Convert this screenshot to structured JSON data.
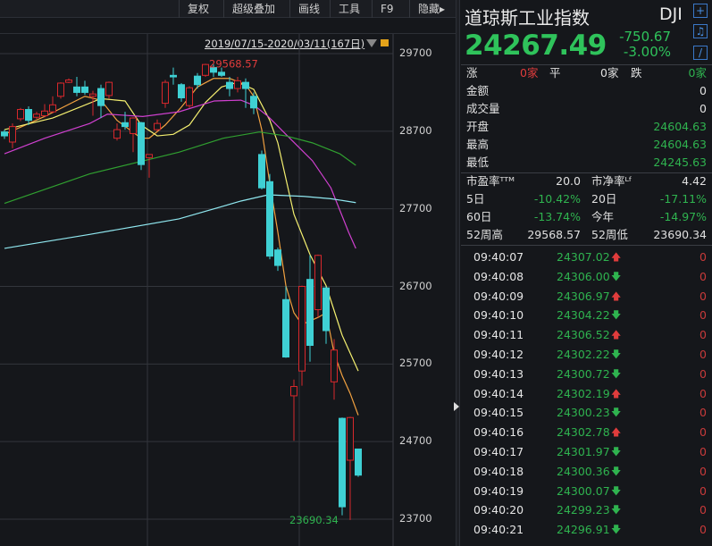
{
  "toolbar": {
    "items": [
      "复权",
      "超级叠加",
      "画线",
      "工具",
      "F9",
      "隐藏▸"
    ]
  },
  "range": "2019/07/15-2020/03/11(167日)",
  "yaxis": {
    "ticks": [
      29700,
      28700,
      27700,
      26700,
      25700,
      24700,
      23700
    ]
  },
  "colors": {
    "up": "#d8282c",
    "down": "#3fd0d4",
    "ma_orange": "#f0a040",
    "ma_yellow": "#f5f070",
    "ma_magenta": "#d040d0",
    "ma_green": "#30a030",
    "ma_cyan": "#90e8f0",
    "green_text": "#2fc35b",
    "red_text": "#e03c3c"
  },
  "chart_data": {
    "type": "candlestick",
    "ylim": [
      23700,
      29700
    ],
    "ohlc": [
      [
        28690,
        28720,
        28600,
        28640
      ],
      [
        28560,
        28800,
        28480,
        28760
      ],
      [
        28860,
        29000,
        28830,
        28980
      ],
      [
        28980,
        29020,
        28780,
        28840
      ],
      [
        28880,
        28950,
        28860,
        28920
      ],
      [
        28900,
        29050,
        28880,
        28960
      ],
      [
        28950,
        29150,
        28930,
        29040
      ],
      [
        29150,
        29330,
        29120,
        29320
      ],
      [
        29330,
        29380,
        29320,
        29360
      ],
      [
        29270,
        29400,
        29150,
        29200
      ],
      [
        29270,
        29350,
        29170,
        29200
      ],
      [
        29150,
        29220,
        28900,
        29180
      ],
      [
        29250,
        29300,
        28870,
        29030
      ],
      [
        29160,
        29340,
        29120,
        29330
      ],
      [
        28610,
        28800,
        28580,
        28720
      ],
      [
        28810,
        28950,
        28720,
        28760
      ],
      [
        28670,
        28880,
        28430,
        28870
      ],
      [
        28810,
        28820,
        28200,
        28270
      ],
      [
        28360,
        28400,
        28100,
        28400
      ],
      [
        28720,
        28850,
        28700,
        28800
      ],
      [
        29060,
        29360,
        29000,
        29330
      ],
      [
        29420,
        29520,
        29300,
        29400
      ],
      [
        29300,
        29320,
        29080,
        29130
      ],
      [
        29030,
        29280,
        29000,
        29260
      ],
      [
        29410,
        29450,
        29250,
        29300
      ],
      [
        29420,
        29568.57,
        29400,
        29560
      ],
      [
        29520,
        29560,
        29400,
        29460
      ],
      [
        29460,
        29520,
        29400,
        29420
      ],
      [
        29330,
        29400,
        29150,
        29250
      ],
      [
        29250,
        29400,
        29200,
        29350
      ],
      [
        29330,
        29380,
        29000,
        29250
      ],
      [
        29150,
        29200,
        28920,
        29000
      ],
      [
        28400,
        28450,
        27950,
        27970
      ],
      [
        28050,
        28150,
        27050,
        27090
      ],
      [
        27170,
        27200,
        26900,
        26970
      ],
      [
        26530,
        26700,
        25780,
        25790
      ],
      [
        25290,
        25500,
        24710,
        25410
      ],
      [
        25610,
        26710,
        25420,
        26700
      ],
      [
        26790,
        27100,
        25730,
        25940
      ],
      [
        26400,
        27110,
        26300,
        27100
      ],
      [
        26680,
        26700,
        25960,
        26130
      ],
      [
        25470,
        26020,
        25240,
        25880
      ],
      [
        25000,
        25010,
        23750,
        23860
      ],
      [
        24460,
        25020,
        23690.34,
        25010
      ],
      [
        24604.63,
        24604.63,
        24245.63,
        24267.49
      ]
    ],
    "ma_lines": [
      {
        "color": "#f0a040",
        "i": [
          0,
          5,
          10,
          12,
          14,
          17,
          18,
          20,
          22,
          24,
          26,
          28,
          30,
          31,
          32,
          33,
          34,
          35,
          36,
          37,
          39,
          40,
          41,
          42,
          43,
          44
        ],
        "v": [
          28660,
          28890,
          29150,
          29100,
          28840,
          28610,
          28610,
          28780,
          29010,
          29270,
          29380,
          29380,
          29300,
          29150,
          28720,
          28030,
          27400,
          26710,
          26360,
          26210,
          26300,
          26360,
          25840,
          25550,
          25320,
          25040
        ]
      },
      {
        "color": "#f5f070",
        "i": [
          0,
          6,
          12,
          15,
          17,
          19,
          21,
          23,
          25,
          27,
          29,
          31,
          33,
          34,
          36,
          38,
          40,
          42,
          44
        ],
        "v": [
          28720,
          28870,
          29120,
          29090,
          28780,
          28640,
          28660,
          28780,
          29070,
          29270,
          29330,
          29240,
          28840,
          28550,
          27630,
          27110,
          26710,
          26070,
          25610
        ]
      },
      {
        "color": "#d040d0",
        "i": [
          0,
          5,
          10.6,
          12.8,
          17.2,
          21.7,
          26.1,
          29.4,
          31.1,
          32.8,
          35,
          38.3,
          40.6,
          42.8,
          43.7
        ],
        "v": [
          28410,
          28610,
          28800,
          28920,
          28890,
          28950,
          29090,
          29100,
          29030,
          28890,
          28660,
          28320,
          27970,
          27400,
          27190
        ]
      },
      {
        "color": "#30a030",
        "i": [
          0,
          10.6,
          21.7,
          27.2,
          31.7,
          35,
          38.3,
          41.7,
          43.7
        ],
        "v": [
          27770,
          28150,
          28430,
          28610,
          28690,
          28640,
          28550,
          28410,
          28260
        ]
      },
      {
        "color": "#90e8f0",
        "i": [
          0,
          10.6,
          21.7,
          29.4,
          32.8,
          37.2,
          40.6,
          43.7
        ],
        "v": [
          27190,
          27370,
          27570,
          27800,
          27880,
          27860,
          27830,
          27780
        ]
      }
    ],
    "annotations": {
      "high_label": "29568.57",
      "low_label": "23690.34"
    }
  },
  "panel": {
    "title": "道琼斯工业指数",
    "code": "DJI",
    "price": "24267.49",
    "change": "-750.67",
    "change_pct": "-3.00%",
    "icons": [
      "plus-icon",
      "bell-icon",
      "pencil-icon"
    ],
    "breadth": {
      "up_label": "涨",
      "up": "0家",
      "flat_label": "平",
      "flat": "0家",
      "down_label": "跌",
      "down": "0家"
    },
    "stats": [
      {
        "label": "金额",
        "value": "0",
        "color": "w"
      },
      {
        "label": "成交量",
        "value": "0",
        "color": "w"
      },
      {
        "label": "开盘",
        "value": "24604.63",
        "color": "g"
      },
      {
        "label": "最高",
        "value": "24604.63",
        "color": "g"
      },
      {
        "label": "最低",
        "value": "24245.63",
        "color": "g"
      }
    ],
    "metrics": [
      {
        "l1": "市盈率ᵀᵀᴹ",
        "v1": "20.0",
        "c1": "w",
        "l2": "市净率ᴸᶠ",
        "v2": "4.42",
        "c2": "w"
      },
      {
        "l1": "5日",
        "v1": "-10.42%",
        "c1": "g",
        "l2": "20日",
        "v2": "-17.11%",
        "c2": "g"
      },
      {
        "l1": "60日",
        "v1": "-13.74%",
        "c1": "g",
        "l2": "今年",
        "v2": "-14.97%",
        "c2": "g"
      },
      {
        "l1": "52周高",
        "v1": "29568.57",
        "c1": "w",
        "l2": "52周低",
        "v2": "23690.34",
        "c2": "w"
      }
    ],
    "ticks": [
      {
        "time": "09:40:07",
        "price": "24307.02",
        "dir": "up",
        "vol": "0"
      },
      {
        "time": "09:40:08",
        "price": "24306.00",
        "dir": "down",
        "vol": "0"
      },
      {
        "time": "09:40:09",
        "price": "24306.97",
        "dir": "up",
        "vol": "0"
      },
      {
        "time": "09:40:10",
        "price": "24304.22",
        "dir": "down",
        "vol": "0"
      },
      {
        "time": "09:40:11",
        "price": "24306.52",
        "dir": "up",
        "vol": "0"
      },
      {
        "time": "09:40:12",
        "price": "24302.22",
        "dir": "down",
        "vol": "0"
      },
      {
        "time": "09:40:13",
        "price": "24300.72",
        "dir": "down",
        "vol": "0"
      },
      {
        "time": "09:40:14",
        "price": "24302.19",
        "dir": "up",
        "vol": "0"
      },
      {
        "time": "09:40:15",
        "price": "24300.23",
        "dir": "down",
        "vol": "0"
      },
      {
        "time": "09:40:16",
        "price": "24302.78",
        "dir": "up",
        "vol": "0"
      },
      {
        "time": "09:40:17",
        "price": "24301.97",
        "dir": "down",
        "vol": "0"
      },
      {
        "time": "09:40:18",
        "price": "24300.36",
        "dir": "down",
        "vol": "0"
      },
      {
        "time": "09:40:19",
        "price": "24300.07",
        "dir": "down",
        "vol": "0"
      },
      {
        "time": "09:40:20",
        "price": "24299.23",
        "dir": "down",
        "vol": "0"
      },
      {
        "time": "09:40:21",
        "price": "24296.91",
        "dir": "down",
        "vol": "0"
      }
    ]
  }
}
